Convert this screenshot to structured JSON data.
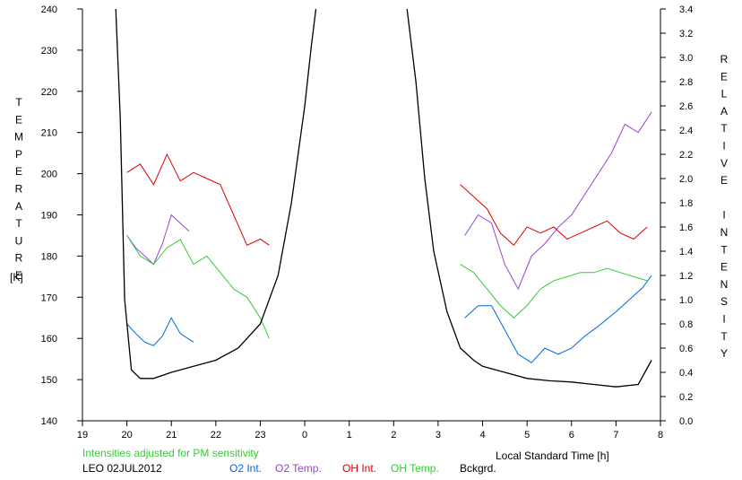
{
  "chart_data": {
    "type": "line",
    "title": "",
    "xlabel": "Local Standard Time [h]",
    "ylabel_left_letters": [
      "T",
      "E",
      "M",
      "P",
      "E",
      "R",
      "A",
      "T",
      "U",
      "R",
      "E"
    ],
    "ylabel_left_unit": "[K]",
    "ylabel_right_letters": [
      "R",
      "E",
      "L",
      "A",
      "T",
      "I",
      "V",
      "E",
      "",
      "I",
      "N",
      "T",
      "E",
      "N",
      "S",
      "I",
      "T",
      "Y"
    ],
    "xlim": [
      19,
      32
    ],
    "ylim_left": [
      140,
      240
    ],
    "ylim_right": [
      0.0,
      3.4
    ],
    "x_ticks": [
      {
        "value": 19,
        "label": "19"
      },
      {
        "value": 20,
        "label": "20"
      },
      {
        "value": 21,
        "label": "21"
      },
      {
        "value": 22,
        "label": "22"
      },
      {
        "value": 23,
        "label": "23"
      },
      {
        "value": 24,
        "label": "0"
      },
      {
        "value": 25,
        "label": "1"
      },
      {
        "value": 26,
        "label": "2"
      },
      {
        "value": 27,
        "label": "3"
      },
      {
        "value": 28,
        "label": "4"
      },
      {
        "value": 29,
        "label": "5"
      },
      {
        "value": 30,
        "label": "6"
      },
      {
        "value": 31,
        "label": "7"
      },
      {
        "value": 32,
        "label": "8"
      }
    ],
    "y_ticks_left": [
      "140",
      "150",
      "160",
      "170",
      "180",
      "190",
      "200",
      "210",
      "220",
      "230",
      "240"
    ],
    "y_ticks_right": [
      "0.0",
      "0.2",
      "0.4",
      "0.6",
      "0.8",
      "1.0",
      "1.2",
      "1.4",
      "1.6",
      "1.8",
      "2.0",
      "2.2",
      "2.4",
      "2.6",
      "2.8",
      "3.0",
      "3.2",
      "3.4"
    ],
    "grid": false,
    "legend_placement": "bottom",
    "series": [
      {
        "name": "O2 Int.",
        "color": "#0066e0",
        "axis": "right",
        "x": [
          20.0,
          20.2,
          20.4,
          20.6,
          20.8,
          21.0,
          21.2,
          21.5,
          27.6,
          27.9,
          28.2,
          28.5,
          28.8,
          29.1,
          29.4,
          29.7,
          30.0,
          30.3,
          30.6,
          31.0,
          31.3,
          31.6,
          31.8
        ],
        "y": [
          0.8,
          0.72,
          0.65,
          0.62,
          0.7,
          0.85,
          0.72,
          0.65,
          0.85,
          0.95,
          0.95,
          0.75,
          0.55,
          0.48,
          0.6,
          0.55,
          0.6,
          0.7,
          0.78,
          0.9,
          1.0,
          1.1,
          1.2
        ],
        "segment_breaks": [
          8
        ]
      },
      {
        "name": "O2 Temp.",
        "color": "#9944cc",
        "axis": "left",
        "x": [
          20.0,
          20.2,
          20.4,
          20.6,
          20.8,
          21.0,
          21.2,
          21.4,
          27.6,
          27.9,
          28.2,
          28.5,
          28.8,
          29.1,
          29.4,
          29.7,
          30.0,
          30.3,
          30.6,
          30.9,
          31.2,
          31.5,
          31.8
        ],
        "y": [
          185,
          182,
          180,
          178,
          183,
          190,
          188,
          186,
          185,
          190,
          188,
          178,
          172,
          180,
          183,
          187,
          190,
          195,
          200,
          205,
          212,
          210,
          215
        ],
        "segment_breaks": [
          8
        ]
      },
      {
        "name": "OH Int.",
        "color": "#dd0000",
        "axis": "right",
        "x": [
          20.0,
          20.3,
          20.6,
          20.9,
          21.2,
          21.5,
          21.8,
          22.1,
          22.4,
          22.7,
          23.0,
          23.2,
          27.5,
          27.8,
          28.1,
          28.4,
          28.7,
          29.0,
          29.3,
          29.6,
          29.9,
          30.2,
          30.5,
          30.8,
          31.1,
          31.4,
          31.7
        ],
        "y": [
          2.05,
          2.12,
          1.95,
          2.2,
          1.98,
          2.05,
          2.0,
          1.95,
          1.7,
          1.45,
          1.5,
          1.45,
          1.95,
          1.85,
          1.75,
          1.55,
          1.45,
          1.6,
          1.55,
          1.6,
          1.5,
          1.55,
          1.6,
          1.65,
          1.55,
          1.5,
          1.6
        ],
        "segment_breaks": [
          12
        ]
      },
      {
        "name": "OH Temp.",
        "color": "#33cc33",
        "axis": "left",
        "x": [
          20.0,
          20.3,
          20.6,
          20.9,
          21.2,
          21.5,
          21.8,
          22.1,
          22.4,
          22.7,
          23.0,
          23.2,
          27.5,
          27.8,
          28.1,
          28.4,
          28.7,
          29.0,
          29.3,
          29.6,
          29.9,
          30.2,
          30.5,
          30.8,
          31.1,
          31.4,
          31.7
        ],
        "y": [
          185,
          180,
          178,
          182,
          184,
          178,
          180,
          176,
          172,
          170,
          165,
          160,
          178,
          176,
          172,
          168,
          165,
          168,
          172,
          174,
          175,
          176,
          176,
          177,
          176,
          175,
          174
        ],
        "segment_breaks": [
          12
        ]
      },
      {
        "name": "Bckgrd.",
        "color": "#000000",
        "axis": "right",
        "x": [
          19.75,
          19.85,
          19.95,
          20.1,
          20.3,
          20.6,
          21.0,
          21.5,
          22.0,
          22.5,
          23.0,
          23.4,
          23.7,
          24.0,
          24.15,
          24.25,
          26.3,
          26.5,
          26.7,
          26.9,
          27.2,
          27.5,
          27.8,
          28.0,
          28.5,
          29.0,
          29.5,
          30.0,
          30.5,
          31.0,
          31.5,
          31.8
        ],
        "y": [
          3.4,
          2.5,
          1.0,
          0.42,
          0.35,
          0.35,
          0.4,
          0.45,
          0.5,
          0.6,
          0.8,
          1.2,
          1.8,
          2.6,
          3.1,
          3.4,
          3.4,
          2.8,
          2.0,
          1.4,
          0.9,
          0.6,
          0.5,
          0.45,
          0.4,
          0.35,
          0.33,
          0.32,
          0.3,
          0.28,
          0.3,
          0.5
        ],
        "segment_breaks": [
          16
        ]
      }
    ]
  },
  "notes": {
    "pm_note": "Intensities adjusted for PM sensitivity",
    "station_date": "LEO 02JUL2012"
  },
  "legend": [
    {
      "label": "O2 Int.",
      "color": "#0066e0"
    },
    {
      "label": "O2 Temp.",
      "color": "#9944cc"
    },
    {
      "label": "OH Int.",
      "color": "#dd0000"
    },
    {
      "label": "OH Temp.",
      "color": "#33cc33"
    },
    {
      "label": "Bckgrd.",
      "color": "#000000"
    }
  ],
  "colors": {
    "pm_note": "#33cc33",
    "axis": "#000000"
  }
}
